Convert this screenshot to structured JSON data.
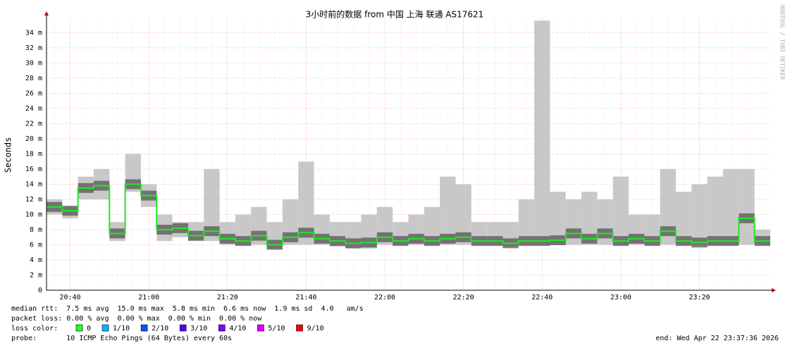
{
  "chart_data": {
    "type": "smoke",
    "title": "3小时前的数据 from 中国 上海 联通 AS17621",
    "y_label": "Seconds",
    "watermark": "RRDTOOL / TOBI OETIKER",
    "categories": [
      null,
      "20:40",
      null,
      null,
      null,
      null,
      "21:00",
      null,
      null,
      null,
      null,
      "21:20",
      null,
      null,
      null,
      null,
      "21:40",
      null,
      null,
      null,
      null,
      "22:00",
      null,
      null,
      null,
      null,
      "22:20",
      null,
      null,
      null,
      null,
      "22:40",
      null,
      null,
      null,
      null,
      "23:00",
      null,
      null,
      null,
      null,
      "23:20",
      null,
      null,
      null,
      null
    ],
    "median": {
      "color": "#22e822",
      "values": [
        11,
        10.5,
        13.5,
        13.8,
        7.5,
        14,
        12.5,
        8,
        8.2,
        7.2,
        7.8,
        6.8,
        6.5,
        7.2,
        6,
        7,
        7.6,
        6.8,
        6.5,
        6.2,
        6.3,
        7,
        6.5,
        6.8,
        6.5,
        6.8,
        7,
        6.5,
        6.5,
        6.2,
        6.5,
        6.5,
        6.6,
        7.5,
        6.8,
        7.5,
        6.5,
        6.8,
        6.5,
        7.8,
        6.5,
        6.3,
        6.5,
        6.5,
        9.5,
        6.5
      ]
    },
    "smoke": {
      "color": "#c8c8c8",
      "low": [
        10,
        9.5,
        12,
        12,
        6.5,
        13,
        11,
        6.5,
        7,
        6.5,
        6.5,
        6,
        6,
        6,
        5.5,
        6,
        6,
        6,
        5.8,
        5.5,
        5.5,
        6,
        6,
        6,
        6,
        6,
        6,
        6,
        6,
        5.8,
        6,
        6,
        6,
        6,
        6,
        6,
        6,
        6,
        6,
        6,
        6,
        6,
        6,
        6,
        6,
        6
      ],
      "high": [
        12,
        11,
        15,
        16,
        9,
        18,
        14,
        10,
        9,
        9,
        16,
        9,
        10,
        11,
        9,
        12,
        17,
        10,
        9,
        9,
        10,
        11,
        9,
        10,
        11,
        15,
        14,
        9,
        9,
        9,
        12,
        35.6,
        13,
        12,
        13,
        12,
        15,
        10,
        10,
        16,
        13,
        14,
        15,
        16,
        16,
        8
      ]
    },
    "ylim": [
      0,
      36
    ],
    "yticks": [
      0,
      {
        "value": 2,
        "label": "2 m"
      },
      {
        "value": 4,
        "label": "4 m"
      },
      {
        "value": 6,
        "label": "6 m"
      },
      {
        "value": 8,
        "label": "8 m"
      },
      {
        "value": 10,
        "label": "10 m"
      },
      {
        "value": 12,
        "label": "12 m"
      },
      {
        "value": 14,
        "label": "14 m"
      },
      {
        "value": 16,
        "label": "16 m"
      },
      {
        "value": 18,
        "label": "18 m"
      },
      {
        "value": 20,
        "label": "20 m"
      },
      {
        "value": 22,
        "label": "22 m"
      },
      {
        "value": 24,
        "label": "24 m"
      },
      {
        "value": 26,
        "label": "26 m"
      },
      {
        "value": 28,
        "label": "28 m"
      },
      {
        "value": 30,
        "label": "30 m"
      },
      {
        "value": 32,
        "label": "32 m"
      },
      {
        "value": 34,
        "label": "34 m"
      }
    ],
    "grid": true,
    "stats": [
      "median rtt:  7.5 ms avg  15.0 ms max  5.8 ms min  6.6 ms now  1.9 ms sd  4.0   am/s",
      "packet loss: 0.00 % avg  0.00 % max  0.00 % min  0.00 % now"
    ],
    "loss_title": "loss color:",
    "loss_legend": [
      {
        "label": "0",
        "color": "#26ff26"
      },
      {
        "label": "1/10",
        "color": "#00b8ff"
      },
      {
        "label": "2/10",
        "color": "#0059ff"
      },
      {
        "label": "3/10",
        "color": "#5e00ff"
      },
      {
        "label": "4/10",
        "color": "#7e00ff"
      },
      {
        "label": "5/10",
        "color": "#dd00ff"
      },
      {
        "label": "9/10",
        "color": "#ff0000"
      }
    ],
    "probe": "probe:       10 ICMP Echo Pings (64 Bytes) every 60s",
    "end": "end: Wed Apr 22 23:37:36 2026"
  }
}
